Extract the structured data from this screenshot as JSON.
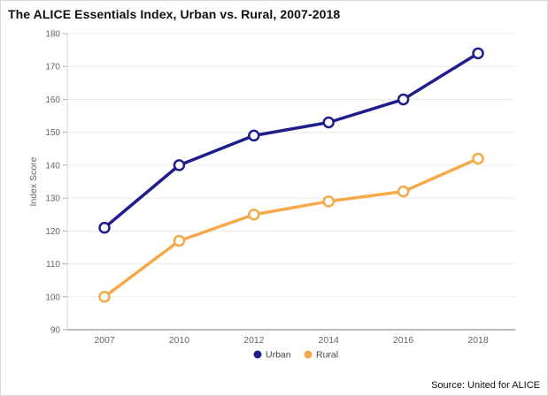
{
  "header": {
    "title": "The ALICE Essentials Index, Urban vs. Rural, 2007-2018"
  },
  "footer": {
    "source": "Source: United for ALICE"
  },
  "colors": {
    "urban": "#201d8c",
    "rural": "#f5a94a",
    "grid": "#ebebeb",
    "axis_line": "#a6a6a6",
    "y_axis_line": "#d4d4d4",
    "tick_mark": "#aaaaaa",
    "tick_text": "#666666",
    "legend_text": "#444444",
    "marker_fill": "#ffffff"
  },
  "chart_data": {
    "type": "line",
    "title": "The ALICE Essentials Index, Urban vs. Rural, 2007-2018",
    "xlabel": "",
    "ylabel": "Index Score",
    "categories": [
      "2007",
      "2010",
      "2012",
      "2014",
      "2016",
      "2018"
    ],
    "series": [
      {
        "name": "Urban",
        "color_key": "urban",
        "values": [
          121,
          140,
          149,
          153,
          160,
          174
        ]
      },
      {
        "name": "Rural",
        "color_key": "rural",
        "values": [
          100,
          117,
          125,
          129,
          132,
          142
        ]
      }
    ],
    "ylim": [
      90,
      180
    ],
    "ytick_step": 10,
    "grid": true,
    "legend_position": "bottom-center",
    "marker": "open-circle",
    "source": "Source: United for ALICE"
  }
}
